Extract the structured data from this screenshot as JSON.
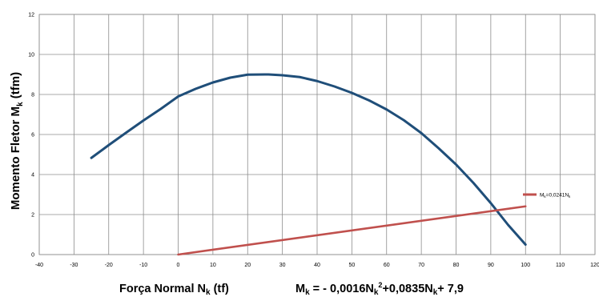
{
  "chart_data": {
    "type": "line",
    "xlim": [
      -40,
      120
    ],
    "ylim": [
      0,
      12
    ],
    "x_ticks": [
      "-40",
      "-30",
      "-20",
      "-10",
      "0",
      "10",
      "20",
      "30",
      "40",
      "50",
      "60",
      "70",
      "80",
      "90",
      "100",
      "110",
      "120"
    ],
    "y_ticks": [
      "0",
      "2",
      "4",
      "6",
      "8",
      "10",
      "12"
    ],
    "grid": true,
    "ylabel": {
      "main": "Momento Fletor M",
      "sub": "k",
      "unit": " (tfm)"
    },
    "xlabel": {
      "main": "Força Normal N",
      "sub": "k",
      "unit": " (tf)"
    },
    "equation": {
      "p1": "M",
      "p1sub": "k",
      "p2": " = - 0,0016N",
      "p2sub": "k",
      "p2sup": "2",
      "p3": "+0,0835N",
      "p3sub": "k",
      "p4": "+ 7,9"
    },
    "series": [
      {
        "color": "#1f4e79",
        "x": [
          -25,
          -20,
          -15,
          -10,
          -5,
          0,
          5,
          10,
          15,
          20,
          25,
          26,
          30,
          35,
          40,
          45,
          50,
          55,
          60,
          65,
          70,
          75,
          80,
          85,
          90,
          95,
          100
        ],
        "values": [
          4.83,
          5.47,
          6.09,
          6.7,
          7.28,
          7.9,
          8.28,
          8.6,
          8.84,
          8.99,
          9.0,
          9.0,
          8.96,
          8.87,
          8.67,
          8.4,
          8.08,
          7.7,
          7.25,
          6.71,
          6.07,
          5.31,
          4.5,
          3.58,
          2.57,
          1.48,
          0.5
        ]
      },
      {
        "name": {
          "main": "M",
          "sub": "k",
          "rest": "=0,0241N",
          "sub2": "k"
        },
        "color": "#c0504d",
        "x": [
          0,
          100
        ],
        "values": [
          0.0,
          2.41
        ]
      }
    ],
    "legend_position": "right"
  }
}
